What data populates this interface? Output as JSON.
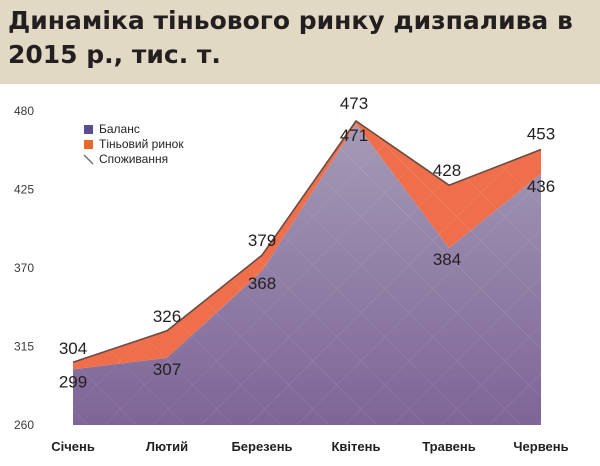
{
  "header": {
    "title": "Динаміка тіньового ринку дизпалива в 2015 р., тис. т."
  },
  "colors": {
    "header_bg": "#e2d9c5",
    "balance_fill": "#8c74a5",
    "shadow_fill": "#ef6f4c",
    "consumption_line": "#6b4a3e"
  },
  "chart_data": {
    "type": "area",
    "categories": [
      "Січень",
      "Лютий",
      "Березень",
      "Квітень",
      "Травень",
      "Червень"
    ],
    "series": [
      {
        "name": "Баланс",
        "values": [
          299,
          307,
          368,
          471,
          384,
          436
        ],
        "color": "#8c74a5"
      },
      {
        "name": "Тіньовий ринок",
        "values": [
          5,
          19,
          11,
          2,
          44,
          17
        ],
        "color": "#ef6f4c"
      },
      {
        "name": "Споживання",
        "values": [
          304,
          326,
          379,
          473,
          428,
          453
        ],
        "color": "#6b4a3e"
      }
    ],
    "y_ticks": [
      260,
      315,
      370,
      425,
      480
    ],
    "ylim": [
      260,
      480
    ],
    "legend_position": "top-left",
    "grid": false
  }
}
